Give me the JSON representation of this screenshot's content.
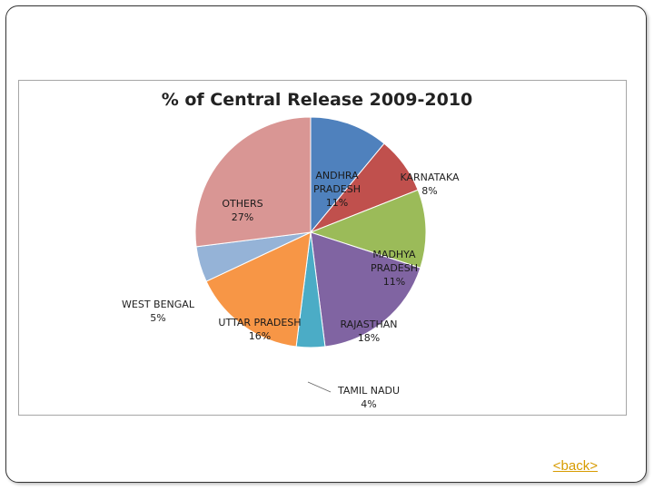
{
  "slide": {
    "back_label": "<back>"
  },
  "chart_data": {
    "type": "pie",
    "title": "% of Central Release 2009-2010",
    "slices": [
      {
        "label": "ANDHRA PRADESH",
        "value": 11,
        "value_label": "11%",
        "color": "#4f81bd"
      },
      {
        "label": "KARNATAKA",
        "value": 8,
        "value_label": "8%",
        "color": "#c0504d"
      },
      {
        "label": "MADHYA PRADESH",
        "value": 11,
        "value_label": "11%",
        "color": "#9bbb59"
      },
      {
        "label": "RAJASTHAN",
        "value": 18,
        "value_label": "18%",
        "color": "#8064a2"
      },
      {
        "label": "TAMIL NADU",
        "value": 4,
        "value_label": "4%",
        "color": "#4bacc6"
      },
      {
        "label": "UTTAR PRADESH",
        "value": 16,
        "value_label": "16%",
        "color": "#f79646"
      },
      {
        "label": "WEST BENGAL",
        "value": 5,
        "value_label": "5%",
        "color": "#95b3d7"
      },
      {
        "label": "OTHERS",
        "value": 27,
        "value_label": "27%",
        "color": "#d99694"
      }
    ]
  }
}
